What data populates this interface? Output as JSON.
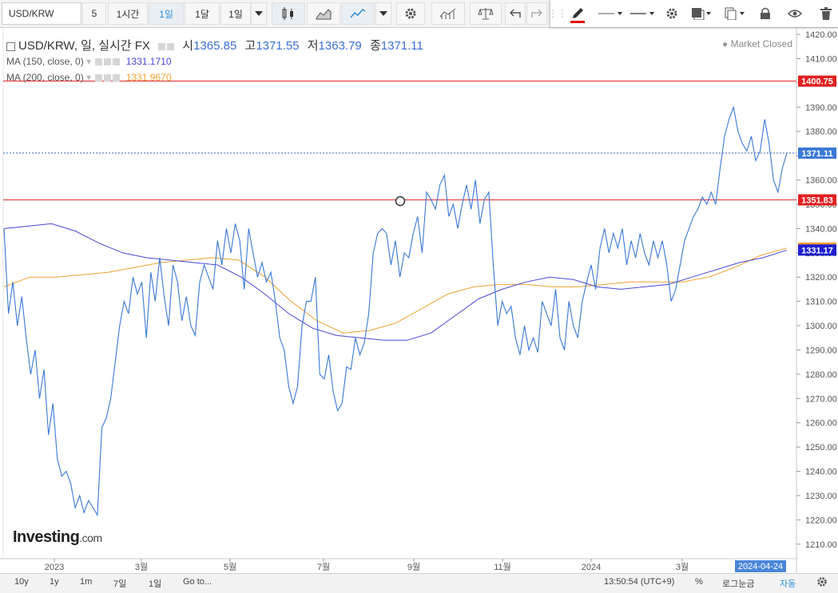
{
  "toolbar": {
    "symbol": "USD/KRW",
    "interval_value": "5",
    "btn_1h": "1시간",
    "btn_1d": "1일",
    "btn_1mo": "1달",
    "btn_1d_select": "1일"
  },
  "legend": {
    "main_label": "USD/KRW, 일, 실시간 FX",
    "open_label": "시",
    "open": "1365.85",
    "high_label": "고",
    "high": "1371.55",
    "low_label": "저",
    "low": "1363.79",
    "close_label": "종",
    "close": "1371.11",
    "ma150_label": "MA (150, close, 0)",
    "ma150_value": "1331.1710",
    "ma200_label": "MA (200, close, 0)",
    "ma200_value": "1331.9670",
    "market_status": "Market Closed"
  },
  "colors": {
    "price_line": "#3a78d6",
    "ma150": "#4a47d8",
    "ma200": "#f0a030",
    "hline": "#e02020",
    "price_dotted": "#3a67c9"
  },
  "chart_data": {
    "type": "line",
    "title": "USD/KRW, 일, 실시간 FX",
    "ylim": [
      1205,
      1422
    ],
    "y_ticks": [
      1210,
      1220,
      1230,
      1240,
      1250,
      1260,
      1270,
      1280,
      1290,
      1300,
      1310,
      1320,
      1330,
      1340,
      1350,
      1360,
      1370,
      1380,
      1390,
      1400,
      1410,
      1420
    ],
    "x_ticks": [
      "2023",
      "3월",
      "5월",
      "7월",
      "9월",
      "11월",
      "2024",
      "3월"
    ],
    "x_cursor_label": "2024-04-24",
    "grid": false,
    "horizontal_lines": [
      1400.75,
      1351.83
    ],
    "price_labels": [
      "1400.75",
      "1371.11",
      "1351.83",
      "1331.97",
      "1331.17"
    ],
    "series": [
      {
        "name": "USD/KRW",
        "values": [
          1340,
          1305,
          1318,
          1300,
          1312,
          1295,
          1280,
          1290,
          1270,
          1282,
          1255,
          1268,
          1245,
          1238,
          1240,
          1235,
          1225,
          1230,
          1223,
          1228,
          1225,
          1222,
          1258,
          1262,
          1270,
          1285,
          1300,
          1310,
          1305,
          1320,
          1313,
          1318,
          1295,
          1322,
          1310,
          1328,
          1312,
          1300,
          1325,
          1318,
          1302,
          1312,
          1300,
          1296,
          1318,
          1325,
          1320,
          1315,
          1335,
          1325,
          1340,
          1330,
          1342,
          1335,
          1315,
          1340,
          1330,
          1320,
          1326,
          1318,
          1322,
          1310,
          1295,
          1290,
          1275,
          1268,
          1275,
          1300,
          1310,
          1310,
          1320,
          1280,
          1278,
          1288,
          1273,
          1265,
          1268,
          1283,
          1282,
          1295,
          1288,
          1293,
          1305,
          1330,
          1338,
          1340,
          1338,
          1325,
          1335,
          1320,
          1330,
          1328,
          1338,
          1345,
          1330,
          1355,
          1352,
          1348,
          1358,
          1362,
          1345,
          1350,
          1340,
          1350,
          1358,
          1348,
          1360,
          1342,
          1352,
          1355,
          1325,
          1300,
          1310,
          1305,
          1308,
          1295,
          1288,
          1300,
          1290,
          1295,
          1289,
          1310,
          1305,
          1300,
          1315,
          1295,
          1290,
          1310,
          1300,
          1295,
          1310,
          1318,
          1325,
          1315,
          1332,
          1340,
          1330,
          1338,
          1332,
          1340,
          1325,
          1335,
          1328,
          1338,
          1330,
          1325,
          1335,
          1328,
          1335,
          1325,
          1310,
          1315,
          1325,
          1335,
          1340,
          1345,
          1348,
          1353,
          1350,
          1355,
          1350,
          1365,
          1378,
          1385,
          1390,
          1380,
          1375,
          1372,
          1378,
          1368,
          1372,
          1385,
          1375,
          1360,
          1355,
          1365,
          1371.11
        ]
      },
      {
        "name": "MA (150, close, 0)",
        "values": [
          1340,
          1341,
          1342,
          1339,
          1334,
          1330,
          1328,
          1327,
          1326,
          1325,
          1320,
          1313,
          1305,
          1299,
          1296,
          1295,
          1294,
          1294,
          1297,
          1304,
          1311,
          1315,
          1318,
          1320,
          1319,
          1316,
          1315,
          1316,
          1317,
          1320,
          1323,
          1326,
          1328,
          1331.17
        ]
      },
      {
        "name": "MA (200, close, 0)",
        "values": [
          1316,
          1320,
          1320,
          1321,
          1322,
          1324,
          1326,
          1327,
          1328,
          1327,
          1320,
          1310,
          1302,
          1297,
          1298,
          1301,
          1307,
          1313,
          1316,
          1317,
          1317,
          1316,
          1316,
          1317,
          1318,
          1318,
          1318,
          1320,
          1324,
          1329,
          1331.97
        ]
      }
    ]
  },
  "bottombar": {
    "r10y": "10y",
    "r1y": "1y",
    "r1m": "1m",
    "r7d": "7일",
    "r1d": "1일",
    "goto": "Go to...",
    "time": "13:50:54 (UTC+9)",
    "percent": "%",
    "log": "로그눈금",
    "auto": "자동"
  },
  "logo": {
    "text": "Investing",
    "suffix": ".com"
  }
}
